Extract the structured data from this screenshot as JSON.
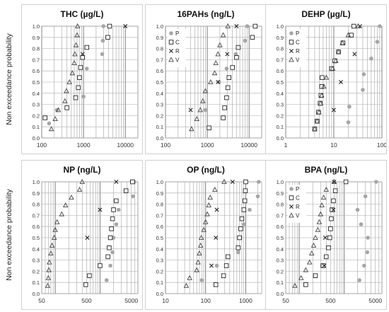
{
  "ylabel": "Non exceedance probability",
  "legend_labels": [
    "P",
    "C",
    "R",
    "V"
  ],
  "chart_data": [
    {
      "type": "scatter",
      "title": "THC (µg/L)",
      "xscale": "log",
      "xlim": [
        100,
        20000
      ],
      "xticks": [
        100,
        1000,
        10000
      ],
      "xticklabels": [
        "100",
        "1000",
        "10000"
      ],
      "ylim": [
        0,
        1.0
      ],
      "legend": false,
      "series": [
        {
          "name": "P",
          "marker": "circle",
          "points": [
            [
              150,
              0.13
            ],
            [
              230,
              0.25
            ],
            [
              1000,
              0.37
            ],
            [
              1200,
              0.62
            ],
            [
              2800,
              0.75
            ],
            [
              2900,
              0.87
            ],
            [
              3000,
              1.0
            ]
          ]
        },
        {
          "name": "C",
          "marker": "square",
          "points": [
            [
              120,
              0.18
            ],
            [
              400,
              0.27
            ],
            [
              650,
              0.36
            ],
            [
              750,
              0.45
            ],
            [
              800,
              0.54
            ],
            [
              850,
              0.63
            ],
            [
              950,
              0.72
            ],
            [
              1200,
              0.81
            ],
            [
              3800,
              0.9
            ],
            [
              4200,
              1.0
            ]
          ]
        },
        {
          "name": "R",
          "marker": "x",
          "points": [
            [
              950,
              0.75
            ],
            [
              10000,
              1.0
            ]
          ]
        },
        {
          "name": "V",
          "marker": "triangle",
          "points": [
            [
              170,
              0.08
            ],
            [
              210,
              0.17
            ],
            [
              250,
              0.25
            ],
            [
              360,
              0.33
            ],
            [
              390,
              0.42
            ],
            [
              460,
              0.5
            ],
            [
              540,
              0.58
            ],
            [
              600,
              0.67
            ],
            [
              620,
              0.75
            ],
            [
              660,
              0.83
            ],
            [
              700,
              0.92
            ],
            [
              720,
              1.0
            ]
          ]
        }
      ]
    },
    {
      "type": "scatter",
      "title": "16PAHs (ng/L)",
      "xscale": "log",
      "xlim": [
        100,
        20000
      ],
      "xticks": [
        100,
        1000,
        10000
      ],
      "xticklabels": [
        "100",
        "1000",
        "10000"
      ],
      "ylim": [
        0,
        1.0
      ],
      "legend": true,
      "series": [
        {
          "name": "P",
          "marker": "circle",
          "points": [
            [
              900,
              0.25
            ],
            [
              1900,
              0.5
            ],
            [
              2900,
              0.62
            ],
            [
              4800,
              0.75
            ],
            [
              8000,
              0.87
            ],
            [
              9000,
              1.0
            ]
          ]
        },
        {
          "name": "C",
          "marker": "square",
          "points": [
            [
              1100,
              0.09
            ],
            [
              2400,
              0.18
            ],
            [
              2600,
              0.27
            ],
            [
              2900,
              0.36
            ],
            [
              3100,
              0.45
            ],
            [
              3300,
              0.54
            ],
            [
              4000,
              0.63
            ],
            [
              5000,
              0.72
            ],
            [
              5500,
              0.81
            ],
            [
              12000,
              0.9
            ],
            [
              14000,
              1.0
            ]
          ]
        },
        {
          "name": "R",
          "marker": "x",
          "points": [
            [
              400,
              0.25
            ],
            [
              1800,
              0.5
            ],
            [
              3000,
              0.75
            ],
            [
              5000,
              1.0
            ]
          ]
        },
        {
          "name": "V",
          "marker": "triangle",
          "points": [
            [
              420,
              0.08
            ],
            [
              560,
              0.17
            ],
            [
              680,
              0.25
            ],
            [
              780,
              0.33
            ],
            [
              900,
              0.42
            ],
            [
              1200,
              0.5
            ],
            [
              1500,
              0.58
            ],
            [
              1600,
              0.67
            ],
            [
              1800,
              0.75
            ],
            [
              2000,
              0.83
            ],
            [
              2400,
              0.92
            ],
            [
              3100,
              1.0
            ]
          ]
        }
      ]
    },
    {
      "type": "scatter",
      "title": "DEHP (µg/L)",
      "xscale": "log",
      "xlim": [
        1,
        100
      ],
      "xticks": [
        1,
        10,
        100
      ],
      "xticklabels": [
        "1",
        "10",
        "100"
      ],
      "ylim": [
        0,
        1.0
      ],
      "legend": true,
      "series": [
        {
          "name": "P",
          "marker": "circle",
          "points": [
            [
              20,
              0.14
            ],
            [
              21,
              0.28
            ],
            [
              40,
              0.43
            ],
            [
              42,
              0.57
            ],
            [
              60,
              0.71
            ],
            [
              80,
              0.86
            ],
            [
              90,
              1.0
            ]
          ]
        },
        {
          "name": "C",
          "marker": "square",
          "points": [
            [
              4.0,
              0.08
            ],
            [
              4.5,
              0.15
            ],
            [
              4.8,
              0.23
            ],
            [
              5.2,
              0.31
            ],
            [
              5.4,
              0.38
            ],
            [
              5.6,
              0.46
            ],
            [
              5.7,
              0.54
            ],
            [
              9.0,
              0.62
            ],
            [
              10.5,
              0.69
            ],
            [
              12.5,
              0.77
            ],
            [
              15.5,
              0.85
            ],
            [
              23,
              0.92
            ],
            [
              26,
              1.0
            ]
          ]
        },
        {
          "name": "R",
          "marker": "x",
          "points": [
            [
              10,
              0.25
            ],
            [
              14,
              0.5
            ],
            [
              27,
              0.75
            ],
            [
              35,
              1.0
            ]
          ]
        },
        {
          "name": "V",
          "marker": "triangle",
          "points": [
            [
              4.0,
              0.08
            ],
            [
              4.5,
              0.15
            ],
            [
              4.9,
              0.23
            ],
            [
              5.3,
              0.31
            ],
            [
              5.6,
              0.38
            ],
            [
              6.2,
              0.46
            ],
            [
              7.0,
              0.54
            ],
            [
              9.5,
              0.62
            ],
            [
              11,
              0.69
            ],
            [
              12.5,
              0.77
            ],
            [
              15,
              0.85
            ],
            [
              20,
              0.92
            ],
            [
              32,
              1.0
            ]
          ]
        }
      ]
    },
    {
      "type": "scatter",
      "title": "NP (ng/L)",
      "xscale": "log",
      "xlim": [
        50,
        7000
      ],
      "xticks": [
        50,
        500,
        5000
      ],
      "xticklabels": [
        "50",
        "500",
        "5000"
      ],
      "ylim": [
        0,
        1.0
      ],
      "legend": false,
      "series": [
        {
          "name": "P",
          "marker": "circle",
          "points": [
            [
              1400,
              0.12
            ],
            [
              1700,
              0.25
            ],
            [
              1900,
              0.37
            ],
            [
              2000,
              0.5
            ],
            [
              2300,
              0.62
            ],
            [
              2600,
              0.75
            ],
            [
              5400,
              0.87
            ],
            [
              5800,
              1.0
            ]
          ]
        },
        {
          "name": "C",
          "marker": "square",
          "points": [
            [
              480,
              0.08
            ],
            [
              580,
              0.16
            ],
            [
              1000,
              0.25
            ],
            [
              1500,
              0.33
            ],
            [
              1600,
              0.41
            ],
            [
              1700,
              0.5
            ],
            [
              1800,
              0.58
            ],
            [
              1900,
              0.67
            ],
            [
              2000,
              0.75
            ],
            [
              2300,
              0.83
            ],
            [
              3800,
              0.92
            ],
            [
              5300,
              1.0
            ]
          ]
        },
        {
          "name": "R",
          "marker": "x",
          "points": [
            [
              520,
              0.5
            ],
            [
              1000,
              0.75
            ],
            [
              2300,
              1.0
            ]
          ]
        },
        {
          "name": "V",
          "marker": "triangle",
          "points": [
            [
              68,
              0.07
            ],
            [
              70,
              0.14
            ],
            [
              72,
              0.21
            ],
            [
              74,
              0.28
            ],
            [
              80,
              0.36
            ],
            [
              85,
              0.43
            ],
            [
              95,
              0.5
            ],
            [
              100,
              0.57
            ],
            [
              110,
              0.64
            ],
            [
              140,
              0.71
            ],
            [
              170,
              0.79
            ],
            [
              230,
              0.86
            ],
            [
              350,
              0.93
            ],
            [
              400,
              1.0
            ]
          ]
        }
      ]
    },
    {
      "type": "scatter",
      "title": "OP (ng/L)",
      "xscale": "log",
      "xlim": [
        10,
        2500
      ],
      "xticks": [
        10,
        100,
        1000
      ],
      "xticklabels": [
        "10",
        "100",
        "1000"
      ],
      "ylim": [
        0,
        1.0
      ],
      "legend": false,
      "series": [
        {
          "name": "P",
          "marker": "circle",
          "points": [
            [
              80,
              0.12
            ],
            [
              190,
              0.25
            ],
            [
              650,
              0.37
            ],
            [
              720,
              0.5
            ],
            [
              900,
              0.62
            ],
            [
              1250,
              0.75
            ],
            [
              2000,
              0.87
            ],
            [
              2100,
              1.0
            ]
          ]
        },
        {
          "name": "C",
          "marker": "square",
          "points": [
            [
              180,
              0.08
            ],
            [
              280,
              0.16
            ],
            [
              330,
              0.25
            ],
            [
              360,
              0.33
            ],
            [
              650,
              0.41
            ],
            [
              700,
              0.5
            ],
            [
              750,
              0.58
            ],
            [
              800,
              0.67
            ],
            [
              900,
              0.75
            ],
            [
              950,
              0.83
            ],
            [
              980,
              0.92
            ],
            [
              1000,
              1.0
            ]
          ]
        },
        {
          "name": "R",
          "marker": "x",
          "points": [
            [
              140,
              0.25
            ],
            [
              180,
              0.5
            ],
            [
              190,
              0.75
            ],
            [
              470,
              1.0
            ]
          ]
        },
        {
          "name": "V",
          "marker": "triangle",
          "points": [
            [
              33,
              0.07
            ],
            [
              40,
              0.14
            ],
            [
              60,
              0.21
            ],
            [
              65,
              0.28
            ],
            [
              70,
              0.36
            ],
            [
              75,
              0.43
            ],
            [
              78,
              0.5
            ],
            [
              90,
              0.57
            ],
            [
              100,
              0.64
            ],
            [
              110,
              0.71
            ],
            [
              120,
              0.79
            ],
            [
              130,
              0.86
            ],
            [
              170,
              0.93
            ],
            [
              290,
              1.0
            ]
          ]
        }
      ]
    },
    {
      "type": "scatter",
      "title": "BPA (ng/L)",
      "xscale": "log",
      "xlim": [
        50,
        7000
      ],
      "xticks": [
        50,
        500,
        5000
      ],
      "xticklabels": [
        "50",
        "500",
        "5000"
      ],
      "ylim": [
        0,
        1.0
      ],
      "legend": true,
      "series": [
        {
          "name": "P",
          "marker": "circle",
          "points": [
            [
              2200,
              0.12
            ],
            [
              2800,
              0.25
            ],
            [
              3300,
              0.37
            ],
            [
              3400,
              0.5
            ],
            [
              2400,
              0.62
            ],
            [
              2000,
              0.75
            ],
            [
              3000,
              0.87
            ],
            [
              5200,
              1.0
            ]
          ]
        },
        {
          "name": "C",
          "marker": "square",
          "points": [
            [
              140,
              0.08
            ],
            [
              230,
              0.16
            ],
            [
              340,
              0.25
            ],
            [
              400,
              0.33
            ],
            [
              450,
              0.41
            ],
            [
              480,
              0.5
            ],
            [
              500,
              0.58
            ],
            [
              520,
              0.67
            ],
            [
              540,
              0.75
            ],
            [
              580,
              0.83
            ],
            [
              640,
              0.92
            ],
            [
              1100,
              1.0
            ]
          ]
        },
        {
          "name": "R",
          "marker": "x",
          "points": [
            [
              360,
              0.25
            ],
            [
              380,
              0.5
            ],
            [
              580,
              0.75
            ],
            [
              600,
              1.0
            ]
          ]
        },
        {
          "name": "V",
          "marker": "triangle",
          "points": [
            [
              80,
              0.07
            ],
            [
              110,
              0.14
            ],
            [
              140,
              0.21
            ],
            [
              170,
              0.28
            ],
            [
              190,
              0.36
            ],
            [
              210,
              0.43
            ],
            [
              230,
              0.5
            ],
            [
              260,
              0.57
            ],
            [
              280,
              0.64
            ],
            [
              300,
              0.71
            ],
            [
              320,
              0.79
            ],
            [
              350,
              0.86
            ],
            [
              400,
              0.93
            ],
            [
              600,
              1.0
            ]
          ]
        }
      ]
    }
  ]
}
